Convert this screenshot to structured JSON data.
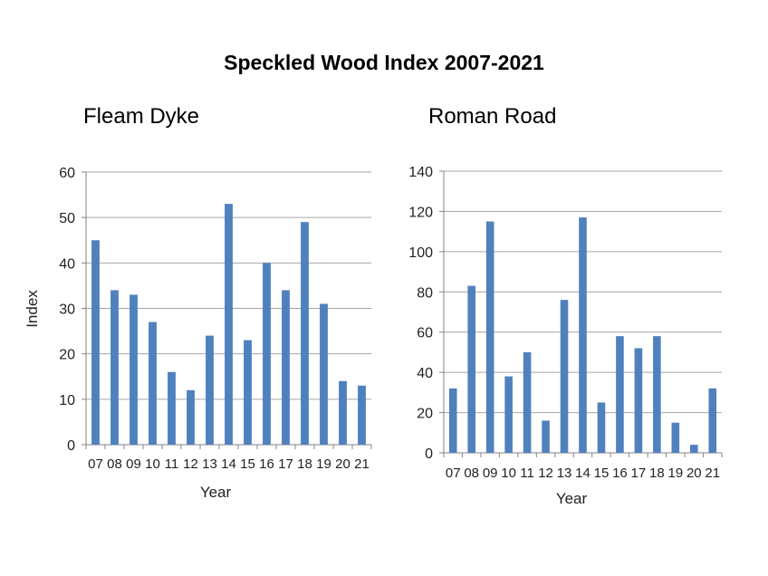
{
  "title": "Speckled Wood Index 2007-2021",
  "colors": {
    "bar": "#4F81BD",
    "grid": "#A6A6A6",
    "axis": "#868686"
  },
  "chart_data": [
    {
      "type": "bar",
      "title": "Fleam Dyke",
      "xlabel": "Year",
      "ylabel": "Index",
      "categories": [
        "07",
        "08",
        "09",
        "10",
        "11",
        "12",
        "13",
        "14",
        "15",
        "16",
        "17",
        "18",
        "19",
        "20",
        "21"
      ],
      "values": [
        45,
        34,
        33,
        27,
        16,
        12,
        24,
        53,
        23,
        40,
        34,
        49,
        31,
        14,
        13
      ],
      "ylim": [
        0,
        60
      ],
      "yticks": [
        0,
        10,
        20,
        30,
        40,
        50,
        60
      ],
      "grid": true
    },
    {
      "type": "bar",
      "title": "Roman Road",
      "xlabel": "Year",
      "ylabel": "",
      "categories": [
        "07",
        "08",
        "09",
        "10",
        "11",
        "12",
        "13",
        "14",
        "15",
        "16",
        "17",
        "18",
        "19",
        "20",
        "21"
      ],
      "values": [
        32,
        83,
        115,
        38,
        50,
        16,
        76,
        117,
        25,
        58,
        52,
        58,
        15,
        4,
        32
      ],
      "ylim": [
        0,
        140
      ],
      "yticks": [
        0,
        20,
        40,
        60,
        80,
        100,
        120,
        140
      ],
      "grid": true
    }
  ]
}
